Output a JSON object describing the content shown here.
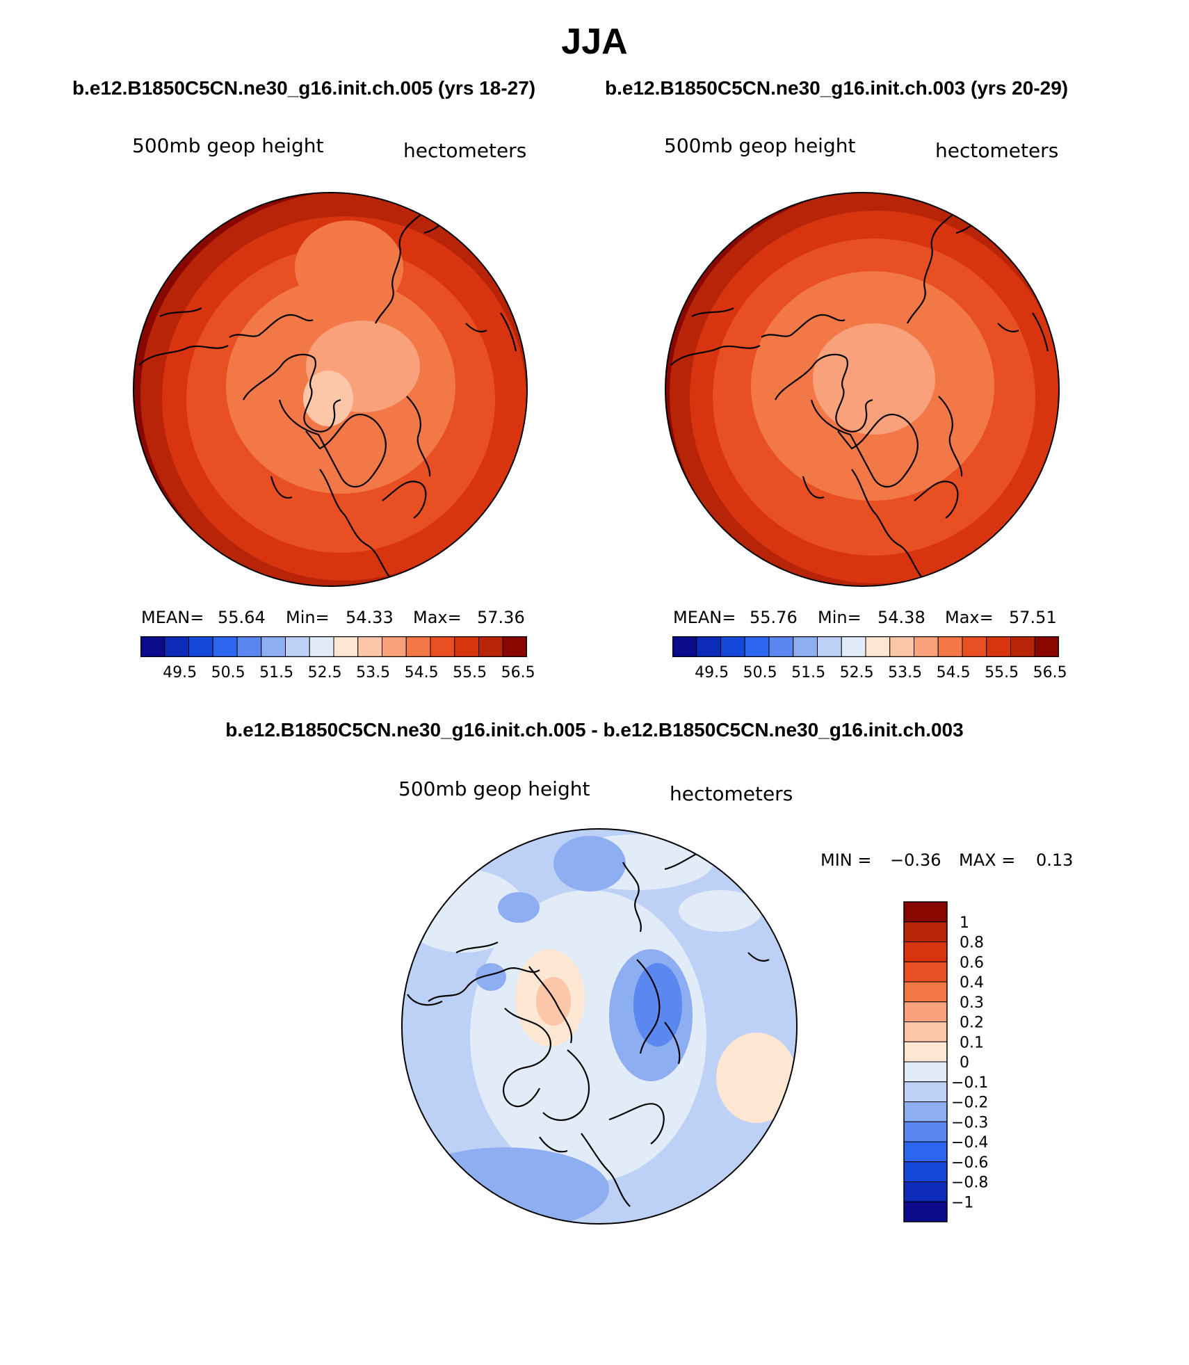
{
  "figure": {
    "title": "JJA",
    "left_case": "b.e12.B1850C5CN.ne30_g16.init.ch.005 (yrs 18-27)",
    "right_case": "b.e12.B1850C5CN.ne30_g16.init.ch.003 (yrs 20-29)",
    "diff_title": "b.e12.B1850C5CN.ne30_g16.init.ch.005 - b.e12.B1850C5CN.ne30_g16.init.ch.003"
  },
  "panels": {
    "left": {
      "variable": "500mb geop height",
      "units": "hectometers",
      "mean_label": "MEAN=",
      "mean": "55.64",
      "min_label": "Min=",
      "min": "54.33",
      "max_label": "Max=",
      "max": "57.36"
    },
    "right": {
      "variable": "500mb geop height",
      "units": "hectometers",
      "mean_label": "MEAN=",
      "mean": "55.76",
      "min_label": "Min=",
      "min": "54.38",
      "max_label": "Max=",
      "max": "57.51"
    },
    "diff": {
      "variable": "500mb geop height",
      "units": "hectometers",
      "min_label": "MIN =",
      "min": "−0.36",
      "max_label": "MAX =",
      "max": "0.13"
    }
  },
  "colorbar_h": {
    "colors": [
      "#0b0b8c",
      "#0b2bb8",
      "#1448d8",
      "#2d66f0",
      "#5a88f0",
      "#8eaef2",
      "#bdd0f5",
      "#e2ecf8",
      "#fde6d2",
      "#fcc6a8",
      "#f8a17a",
      "#f27848",
      "#e84f22",
      "#d83410",
      "#b82408",
      "#880800"
    ],
    "ticks": [
      "49.5",
      "50.5",
      "51.5",
      "52.5",
      "53.5",
      "54.5",
      "55.5",
      "56.5"
    ]
  },
  "colorbar_v": {
    "colors": [
      "#880800",
      "#b82408",
      "#d83410",
      "#e84f22",
      "#f27848",
      "#f8a17a",
      "#fcc6a8",
      "#fde6d2",
      "#e2ecf8",
      "#bdd0f5",
      "#8eaef2",
      "#5a88f0",
      "#2d66f0",
      "#1448d8",
      "#0b2bb8",
      "#0b0b8c"
    ],
    "ticks": [
      "1",
      "0.8",
      "0.6",
      "0.4",
      "0.3",
      "0.2",
      "0.1",
      "0",
      "−0.1",
      "−0.2",
      "−0.3",
      "−0.4",
      "−0.6",
      "−0.8",
      "−1"
    ]
  }
}
